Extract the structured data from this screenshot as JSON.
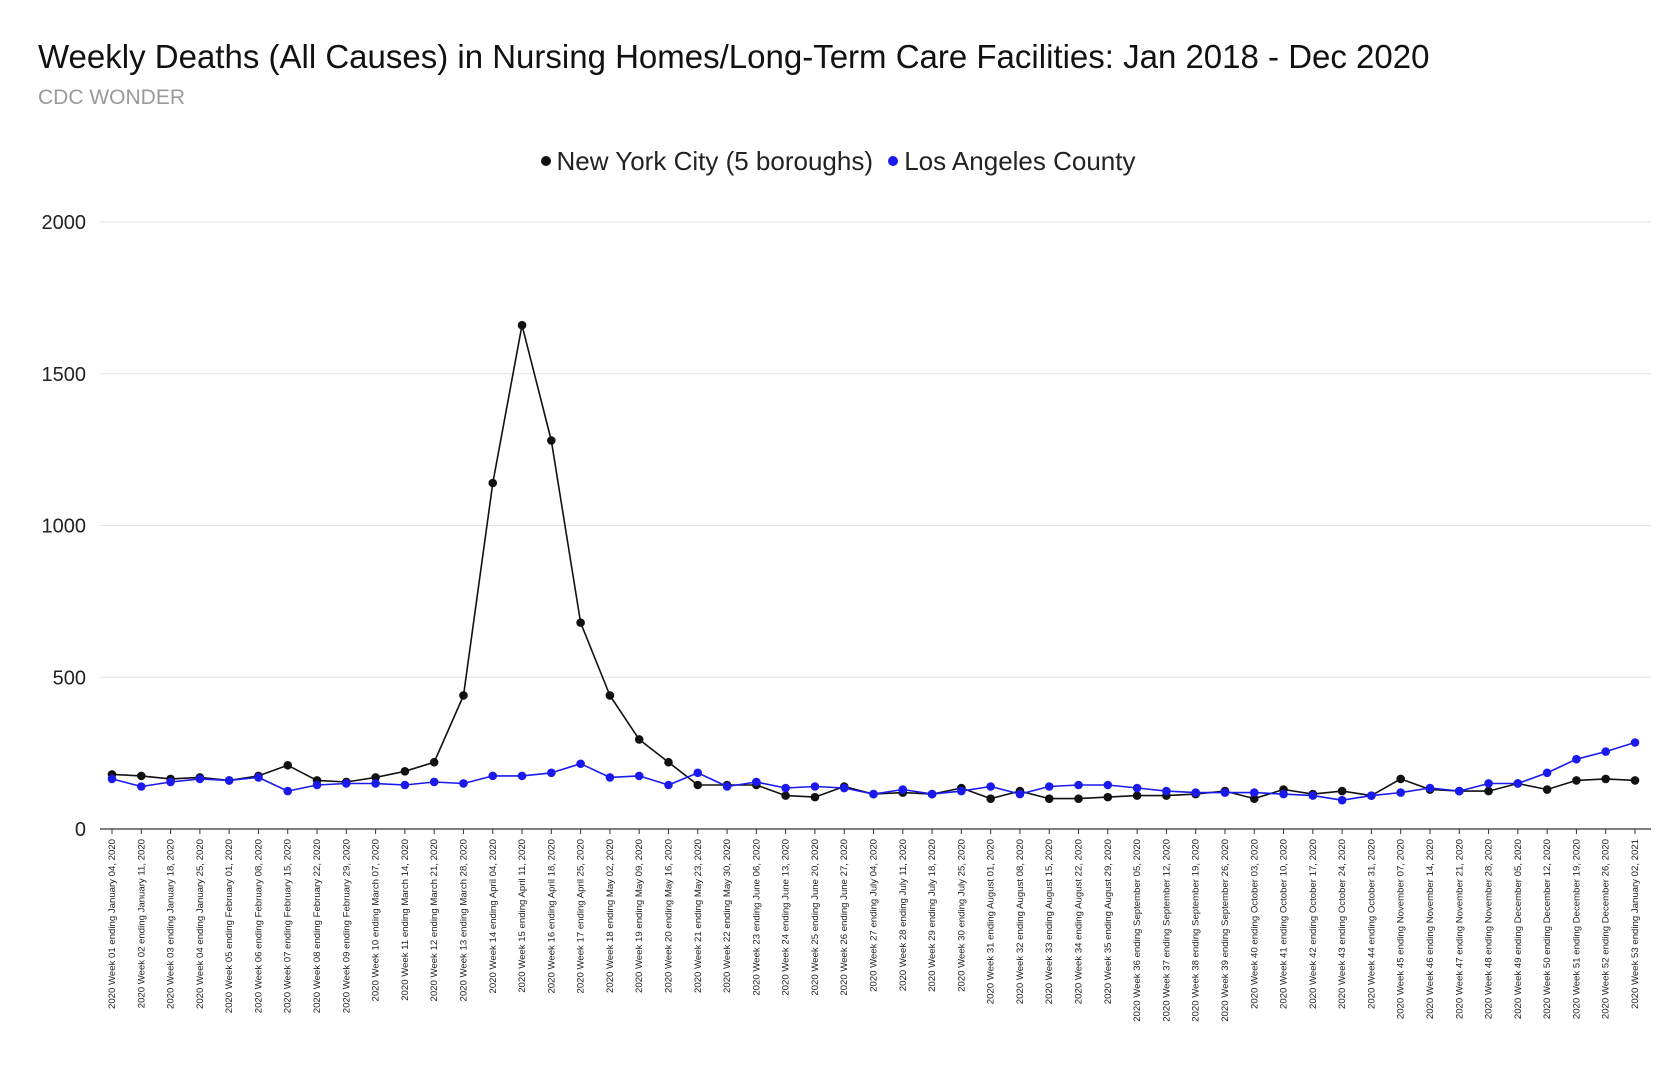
{
  "chart_data": {
    "type": "line",
    "title": "Weekly Deaths (All Causes) in Nursing Homes/Long-Term Care Facilities: Jan 2018 - Dec 2020",
    "subtitle": "CDC WONDER",
    "xlabel": "",
    "ylabel": "",
    "ylim": [
      0,
      2000
    ],
    "yticks": [
      0,
      500,
      1000,
      1500,
      2000
    ],
    "grid": true,
    "legend_position": "top",
    "categories": [
      "2020 Week 01 ending January 04, 2020",
      "2020 Week 02 ending January 11, 2020",
      "2020 Week 03 ending January 18, 2020",
      "2020 Week 04 ending January 25, 2020",
      "2020 Week 05 ending February 01, 2020",
      "2020 Week 06 ending February 08, 2020",
      "2020 Week 07 ending February 15, 2020",
      "2020 Week 08 ending February 22, 2020",
      "2020 Week 09 ending February 29, 2020",
      "2020 Week 10 ending March 07, 2020",
      "2020 Week 11 ending March 14, 2020",
      "2020 Week 12 ending March 21, 2020",
      "2020 Week 13 ending March 28, 2020",
      "2020 Week 14 ending April 04, 2020",
      "2020 Week 15 ending April 11, 2020",
      "2020 Week 16 ending April 18, 2020",
      "2020 Week 17 ending April 25, 2020",
      "2020 Week 18 ending May 02, 2020",
      "2020 Week 19 ending May 09, 2020",
      "2020 Week 20 ending May 16, 2020",
      "2020 Week 21 ending May 23, 2020",
      "2020 Week 22 ending May 30, 2020",
      "2020 Week 23 ending June 06, 2020",
      "2020 Week 24 ending June 13, 2020",
      "2020 Week 25 ending June 20, 2020",
      "2020 Week 26 ending June 27, 2020",
      "2020 Week 27 ending July 04, 2020",
      "2020 Week 28 ending July 11, 2020",
      "2020 Week 29 ending July 18, 2020",
      "2020 Week 30 ending July 25, 2020",
      "2020 Week 31 ending August 01, 2020",
      "2020 Week 32 ending August 08, 2020",
      "2020 Week 33 ending August 15, 2020",
      "2020 Week 34 ending August 22, 2020",
      "2020 Week 35 ending August 29, 2020",
      "2020 Week 36 ending September 05, 2020",
      "2020 Week 37 ending September 12, 2020",
      "2020 Week 38 ending September 19, 2020",
      "2020 Week 39 ending September 26, 2020",
      "2020 Week 40 ending October 03, 2020",
      "2020 Week 41 ending October 10, 2020",
      "2020 Week 42 ending October 17, 2020",
      "2020 Week 43 ending October 24, 2020",
      "2020 Week 44 ending October 31, 2020",
      "2020 Week 45 ending November 07, 2020",
      "2020 Week 46 ending November 14, 2020",
      "2020 Week 47 ending November 21, 2020",
      "2020 Week 48 ending November 28, 2020",
      "2020 Week 49 ending December 05, 2020",
      "2020 Week 50 ending December 12, 2020",
      "2020 Week 51 ending December 19, 2020",
      "2020 Week 52 ending December 26, 2020",
      "2020 Week 53 ending January 02, 2021"
    ],
    "series": [
      {
        "name": "New York City (5 boroughs)",
        "color": "#111111",
        "values": [
          180,
          175,
          165,
          170,
          160,
          175,
          210,
          160,
          155,
          170,
          190,
          220,
          440,
          1140,
          1660,
          1280,
          680,
          440,
          295,
          220,
          145,
          145,
          145,
          110,
          105,
          140,
          115,
          120,
          115,
          135,
          100,
          125,
          100,
          100,
          105,
          110,
          110,
          115,
          125,
          100,
          130,
          115,
          125,
          110,
          165,
          130,
          125,
          125,
          150,
          130,
          160,
          165,
          160
        ]
      },
      {
        "name": "Los Angeles County",
        "color": "#1a1aee",
        "values": [
          165,
          140,
          155,
          165,
          160,
          170,
          125,
          145,
          150,
          150,
          145,
          155,
          150,
          175,
          175,
          185,
          215,
          170,
          175,
          145,
          185,
          140,
          155,
          135,
          140,
          135,
          115,
          130,
          115,
          125,
          140,
          115,
          140,
          145,
          145,
          135,
          125,
          120,
          120,
          120,
          115,
          110,
          95,
          110,
          120,
          135,
          125,
          150,
          150,
          185,
          230,
          255,
          285
        ]
      }
    ]
  }
}
